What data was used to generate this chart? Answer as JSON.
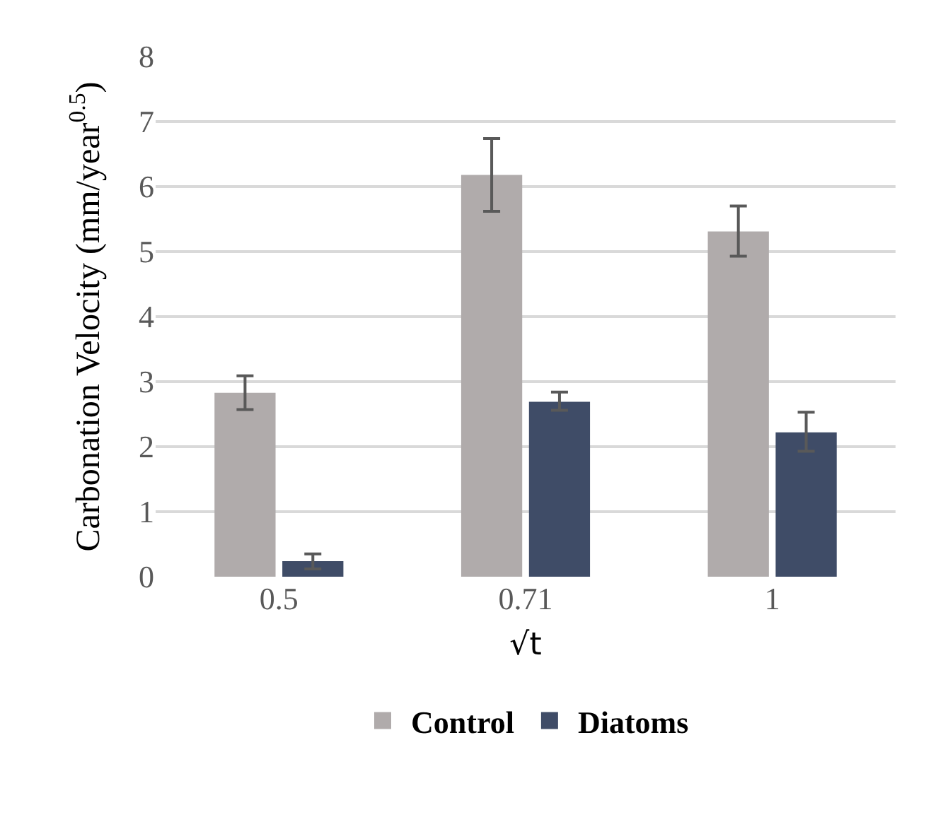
{
  "chart_data": {
    "type": "bar",
    "xlabel": "√t",
    "ylabel": "Carbonation Velocity (mm/year$^{0.5}$)",
    "categories": [
      "0.5",
      "0.71",
      "1"
    ],
    "series": [
      {
        "name": "Control",
        "color": "#b0abab",
        "values": [
          2.83,
          6.18,
          5.31
        ],
        "errors": [
          [
            2.57,
            3.09
          ],
          [
            5.62,
            6.74
          ],
          [
            4.93,
            5.7
          ]
        ]
      },
      {
        "name": "Diatoms",
        "color": "#3f4c67",
        "values": [
          0.24,
          2.69,
          2.22
        ],
        "errors": [
          [
            0.12,
            0.35
          ],
          [
            2.56,
            2.84
          ],
          [
            1.93,
            2.53
          ]
        ]
      }
    ],
    "ylim": [
      0,
      8
    ],
    "yticks": [
      0,
      1,
      2,
      3,
      4,
      5,
      6,
      7,
      8
    ],
    "grid": "y",
    "legend": "bottom"
  }
}
